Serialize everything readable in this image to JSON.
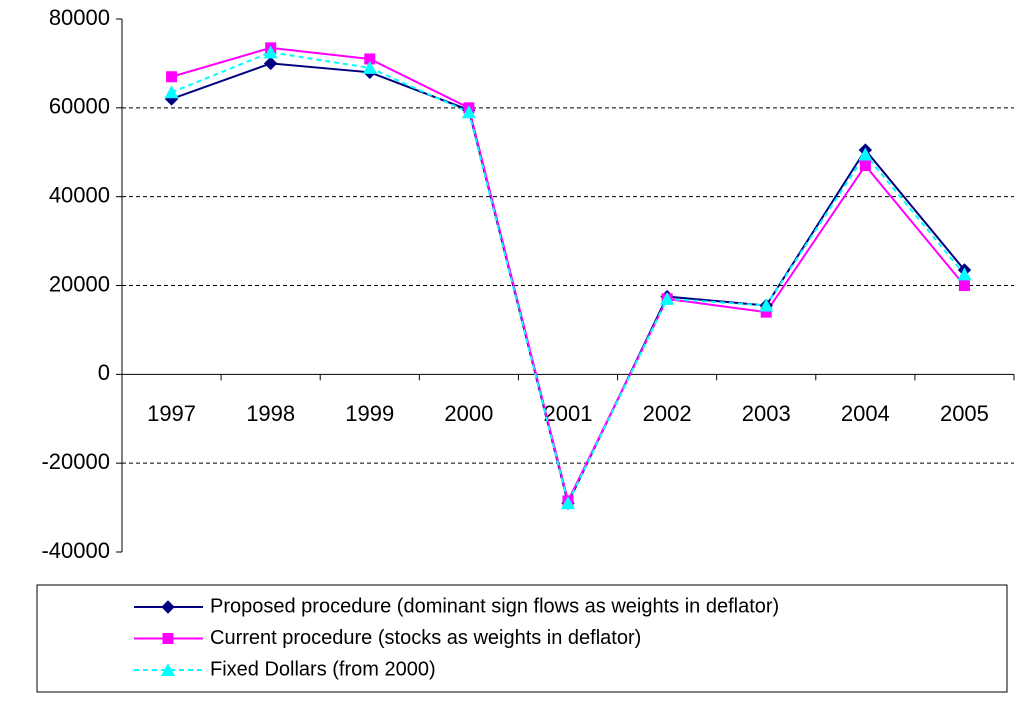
{
  "chart_data": {
    "type": "line",
    "categories": [
      "1997",
      "1998",
      "1999",
      "2000",
      "2001",
      "2002",
      "2003",
      "2004",
      "2005"
    ],
    "series": [
      {
        "name": "Proposed procedure (dominant sign flows as weights in deflator)",
        "color": "#000080",
        "marker": "diamond",
        "line_style": "solid",
        "values": [
          62000,
          70000,
          68000,
          59500,
          -29000,
          17500,
          15500,
          50500,
          23500
        ]
      },
      {
        "name": "Current procedure (stocks as weights in deflator)",
        "color": "#ff00ff",
        "marker": "square",
        "line_style": "solid",
        "values": [
          67000,
          73500,
          71000,
          60000,
          -28500,
          17000,
          14000,
          47000,
          20000
        ]
      },
      {
        "name": "Fixed Dollars (from 2000)",
        "color": "#00ffff",
        "marker": "triangle",
        "line_style": "dashed",
        "values": [
          63500,
          72500,
          69000,
          59000,
          -29000,
          17000,
          15500,
          49500,
          22500
        ]
      }
    ],
    "ylim": [
      -40000,
      80000
    ],
    "yticks": [
      -40000,
      -20000,
      0,
      20000,
      40000,
      60000,
      80000
    ],
    "grid": true,
    "legend": "bottom"
  }
}
